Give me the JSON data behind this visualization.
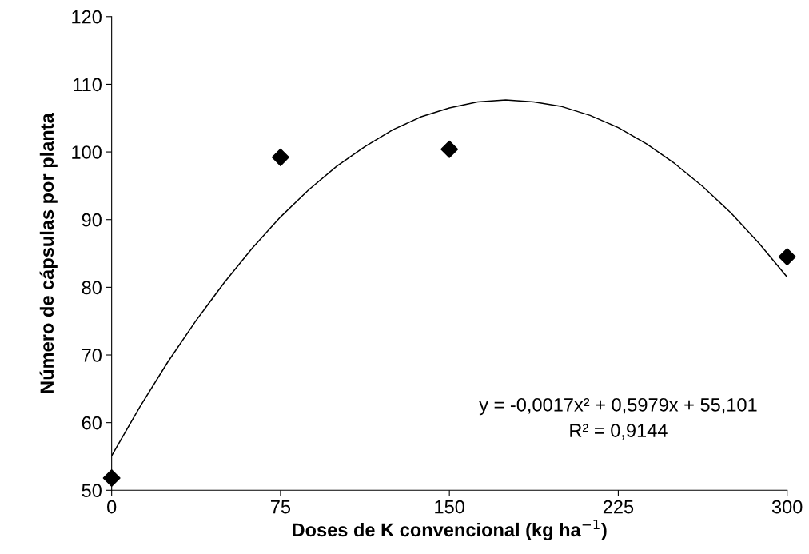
{
  "chart_data": {
    "type": "scatter",
    "xlabel": "Doses de K convencional (kg ha$^{−1}$)",
    "ylabel": "Número de cápsulas por planta",
    "xlim": [
      0,
      300
    ],
    "xticks": [
      0,
      75,
      150,
      225,
      300
    ],
    "ylim": [
      50,
      120
    ],
    "yticks": [
      50,
      60,
      70,
      80,
      90,
      100,
      110,
      120
    ],
    "grid": false,
    "marker": "diamond",
    "series": [
      {
        "color": "#000000",
        "x": [
          0,
          75,
          150,
          300
        ],
        "values": [
          51.8,
          99.2,
          100.4,
          84.5
        ]
      },
      {
        "type": "line",
        "color": "#000000",
        "marker": "none",
        "x": [
          0,
          12.5,
          25,
          37.5,
          50,
          62.5,
          75,
          87.5,
          100,
          112.5,
          125,
          137.5,
          150,
          162.5,
          175,
          187.5,
          200,
          212.5,
          225,
          237.5,
          250,
          262.5,
          275,
          287.5,
          300
        ],
        "values": [
          55.1,
          62.3,
          69.0,
          75.1,
          80.7,
          85.8,
          90.4,
          94.4,
          97.9,
          100.8,
          103.3,
          105.2,
          106.5,
          107.4,
          107.7,
          107.4,
          106.7,
          105.4,
          103.6,
          101.2,
          98.3,
          94.9,
          91.0,
          86.5,
          81.5
        ]
      }
    ],
    "annotations": [
      "y = -0,0017x² + 0,5979x + 55,101\nR² = 0,9144"
    ]
  }
}
